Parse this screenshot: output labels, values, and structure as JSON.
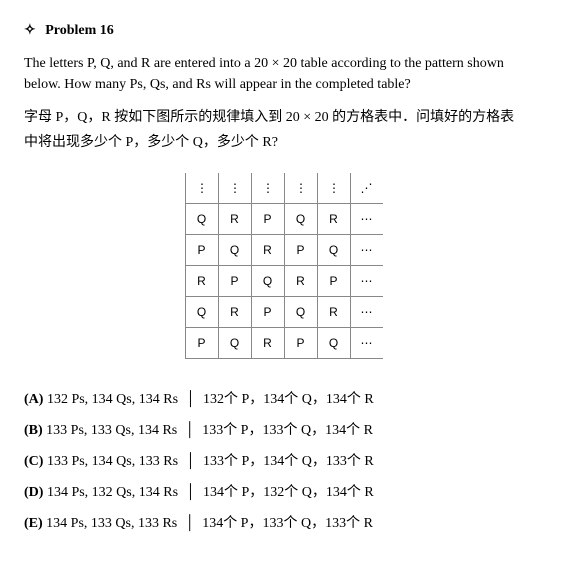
{
  "header": {
    "diamond": "✧",
    "title": "Problem 16"
  },
  "english_text": "The letters P, Q, and R are entered into a 20 × 20 table according to the pattern shown below. How many Ps, Qs, and Rs will appear in the completed table?",
  "chinese_text_1": "字母 P，Q，R 按如下图所示的规律填入到 20 × 20 的方格表中．问填好的方格表",
  "chinese_text_2": "中将出现多少个 P，多少个 Q，多少个 R?",
  "grid": {
    "rows": [
      [
        "⋮",
        "⋮",
        "⋮",
        "⋮",
        "⋮",
        "⋰"
      ],
      [
        "Q",
        "R",
        "P",
        "Q",
        "R",
        "⋯"
      ],
      [
        "P",
        "Q",
        "R",
        "P",
        "Q",
        "⋯"
      ],
      [
        "R",
        "P",
        "Q",
        "R",
        "P",
        "⋯"
      ],
      [
        "Q",
        "R",
        "P",
        "Q",
        "R",
        "⋯"
      ],
      [
        "P",
        "Q",
        "R",
        "P",
        "Q",
        "⋯"
      ]
    ]
  },
  "options": [
    {
      "label": "(A)",
      "en": "132 Ps, 134 Qs, 134 Rs",
      "cn": "132个 P，134个 Q，134个 R"
    },
    {
      "label": "(B)",
      "en": "133 Ps, 133 Qs, 134 Rs",
      "cn": "133个 P，133个 Q，134个 R"
    },
    {
      "label": "(C)",
      "en": "133 Ps, 134 Qs, 133 Rs",
      "cn": "133个 P，134个 Q，133个 R"
    },
    {
      "label": "(D)",
      "en": "134 Ps, 132 Qs, 134 Rs",
      "cn": "134个 P，132个 Q，134个 R"
    },
    {
      "label": "(E)",
      "en": "134 Ps, 133 Qs, 133 Rs",
      "cn": "134个 P，133个 Q，133个 R"
    }
  ],
  "divider": "│"
}
